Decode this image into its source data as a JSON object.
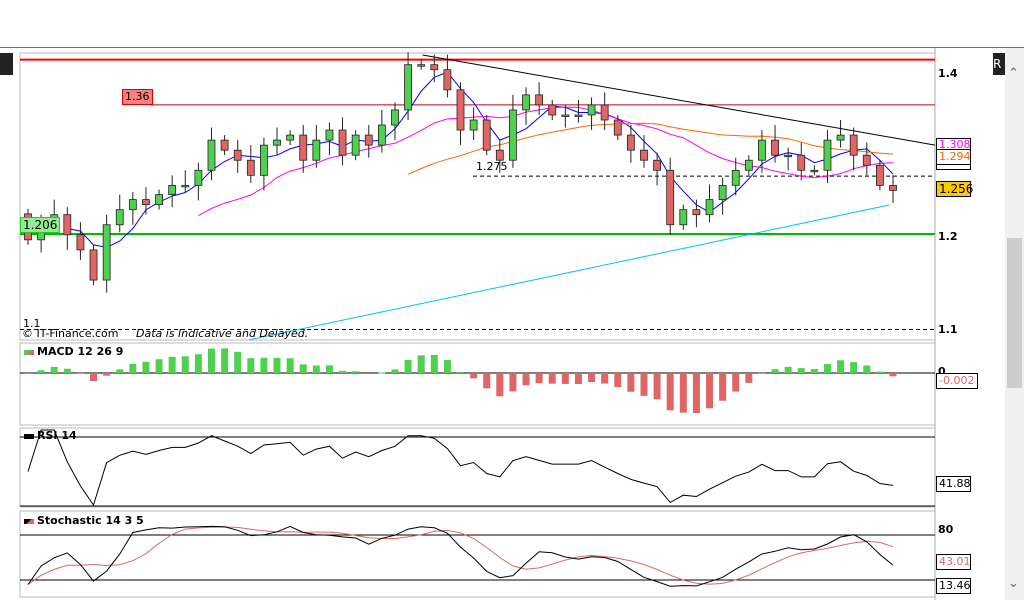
{
  "window": {
    "corner_label": "R"
  },
  "chart_data": {
    "type": "candlestick",
    "instrument_scale": {
      "ylim": [
        1.09,
        1.42
      ],
      "ticks": [
        "1.4",
        "1.2",
        "1.1"
      ]
    },
    "first_open": 1.23,
    "close": [
      1.199,
      1.217,
      1.229,
      1.205,
      1.187,
      1.151,
      1.217,
      1.235,
      1.247,
      1.241,
      1.253,
      1.264,
      1.264,
      1.282,
      1.318,
      1.306,
      1.294,
      1.276,
      1.312,
      1.318,
      1.324,
      1.294,
      1.318,
      1.33,
      1.3,
      1.324,
      1.312,
      1.336,
      1.354,
      1.408,
      1.408,
      1.402,
      1.378,
      1.33,
      1.342,
      1.306,
      1.294,
      1.354,
      1.372,
      1.36,
      1.348,
      1.348,
      1.348,
      1.36,
      1.342,
      1.324,
      1.306,
      1.294,
      1.282,
      1.217,
      1.235,
      1.229,
      1.247,
      1.264,
      1.282,
      1.294,
      1.318,
      1.3,
      1.3,
      1.282,
      1.282,
      1.318,
      1.324,
      1.3,
      1.288,
      1.264,
      1.258
    ],
    "levels": [
      {
        "price": 1.414,
        "color": "#ff0000",
        "style": "solid"
      },
      {
        "price": 1.36,
        "label": "1.36",
        "color": "#c00000",
        "style": "solid"
      },
      {
        "price": 1.275,
        "label": "1.275",
        "color": "#000000",
        "style": "dashed"
      },
      {
        "price": 1.206,
        "label": "1.206",
        "color": "#00bb00",
        "style": "solid"
      },
      {
        "price": 1.092,
        "label": "1.1",
        "color": "#000000",
        "style": "dashed"
      }
    ],
    "trendlines": [
      {
        "from": [
          0.44,
          1.4196
        ],
        "to": [
          1.0,
          1.312
        ],
        "color": "#000000"
      },
      {
        "from": [
          0.25,
          1.0795
        ],
        "to": [
          0.95,
          1.2406
        ],
        "color": "#00bfff"
      }
    ],
    "moving_average_values": {
      "magenta": "1.308",
      "orange": "1.294",
      "last": "1.256"
    },
    "colors": {
      "up": "#4fd14f",
      "down": "#e06666",
      "ma_short": "#0000ff",
      "ma_mid": "#ff00ff",
      "ma_long": "#ff6600"
    },
    "macd": {
      "title": "MACD 12 26 9",
      "zero_label": "0",
      "value": "-0.002"
    },
    "rsi": {
      "title": "RSI 14",
      "value": "41.88"
    },
    "stochastic": {
      "title": "Stochastic 14 3 5",
      "level_label": "80",
      "d_value": "43.01",
      "k_value": "13.46"
    }
  },
  "footer": {
    "copyright": "© IT-Finance.com",
    "disclaimer": "Data is Indicative and Delayed."
  }
}
